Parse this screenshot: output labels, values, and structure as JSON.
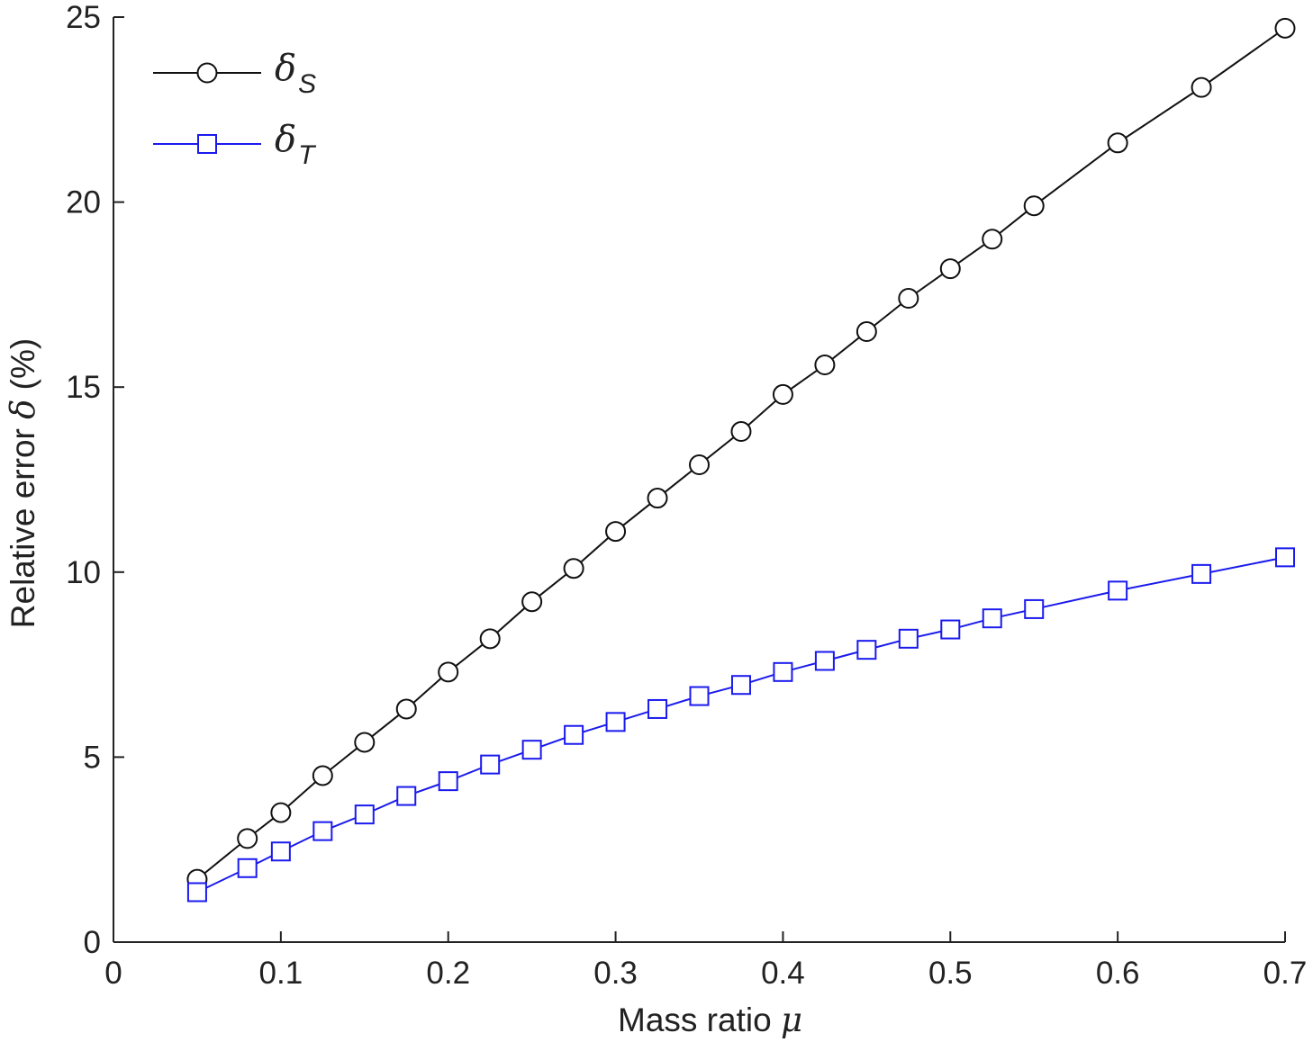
{
  "chart_data": {
    "type": "line",
    "xlabel": "Mass ratio",
    "xlabel_symbol": "μ",
    "ylabel": "Relative error",
    "ylabel_symbol": "δ",
    "ylabel_unit": "(%)",
    "xlim": [
      0,
      0.7
    ],
    "ylim": [
      0,
      25
    ],
    "xticks": [
      0,
      0.1,
      0.2,
      0.3,
      0.4,
      0.5,
      0.6,
      0.7
    ],
    "xtick_labels": [
      "0",
      "0.1",
      "0.2",
      "0.3",
      "0.4",
      "0.5",
      "0.6",
      "0.7"
    ],
    "yticks": [
      0,
      5,
      10,
      15,
      20,
      25
    ],
    "ytick_labels": [
      "0",
      "5",
      "10",
      "15",
      "20",
      "25"
    ],
    "grid": false,
    "legend_position": "top-left",
    "x": [
      0.05,
      0.08,
      0.1,
      0.125,
      0.15,
      0.175,
      0.2,
      0.225,
      0.25,
      0.275,
      0.3,
      0.325,
      0.35,
      0.375,
      0.4,
      0.425,
      0.45,
      0.475,
      0.5,
      0.525,
      0.55,
      0.6,
      0.65,
      0.7
    ],
    "series": [
      {
        "name": "δ",
        "subscript": "S",
        "color": "#111111",
        "marker": "circle",
        "values": [
          1.7,
          2.8,
          3.5,
          4.5,
          5.4,
          6.3,
          7.3,
          8.2,
          9.2,
          10.1,
          11.1,
          12.0,
          12.9,
          13.8,
          14.8,
          15.6,
          16.5,
          17.4,
          18.2,
          19.0,
          19.9,
          21.6,
          23.1,
          24.7
        ]
      },
      {
        "name": "δ",
        "subscript": "T",
        "color": "#1a1aee",
        "marker": "square",
        "values": [
          1.35,
          2.0,
          2.45,
          3.0,
          3.45,
          3.95,
          4.35,
          4.8,
          5.2,
          5.6,
          5.95,
          6.3,
          6.65,
          6.95,
          7.3,
          7.6,
          7.9,
          8.2,
          8.45,
          8.75,
          9.0,
          9.5,
          9.95,
          10.4
        ]
      }
    ]
  }
}
